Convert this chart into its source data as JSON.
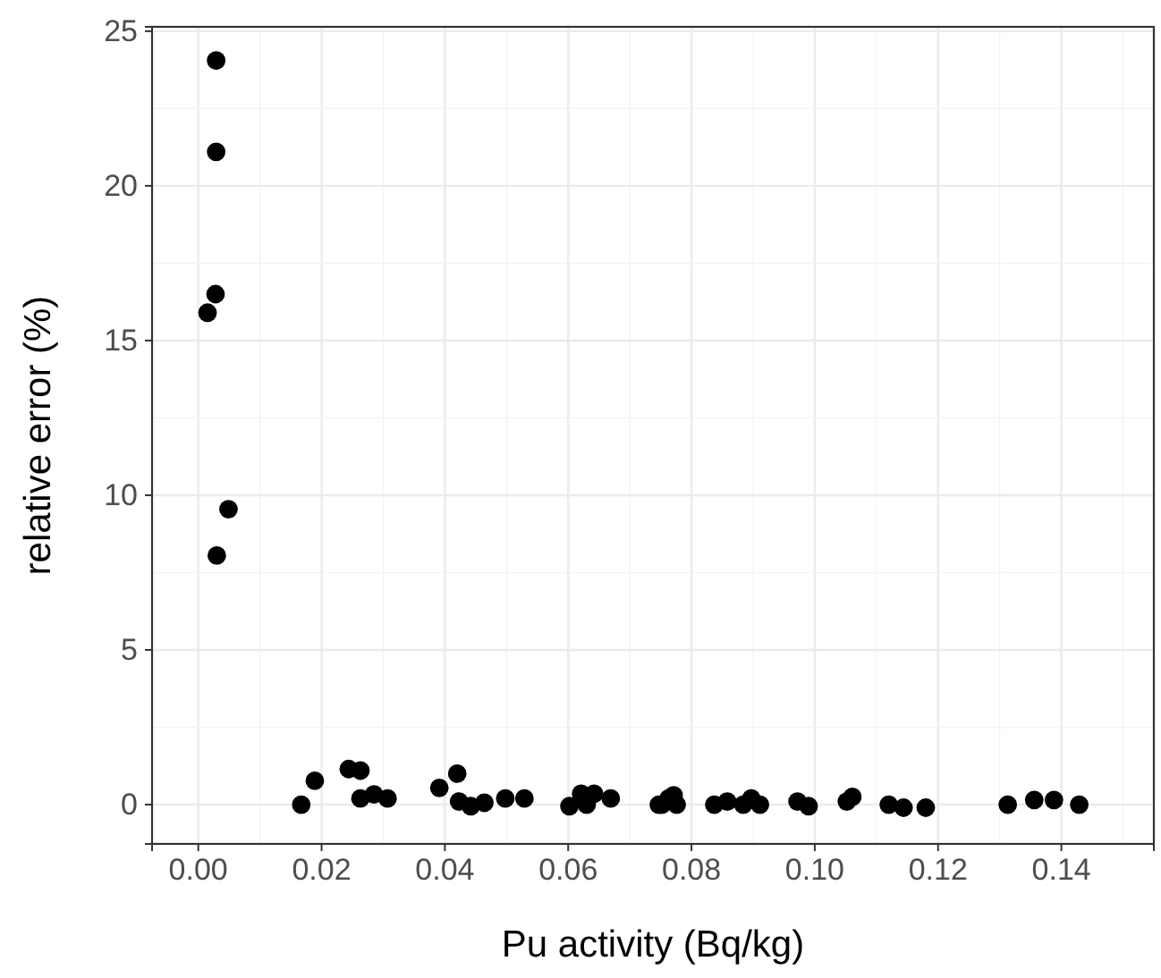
{
  "chart_data": {
    "type": "scatter",
    "xlabel": "Pu activity (Bq/kg)",
    "ylabel": "relative error (%)",
    "x": [
      0.0029,
      0.0029,
      0.0028,
      0.0015,
      0.0049,
      0.003,
      0.0167,
      0.0189,
      0.0244,
      0.0263,
      0.0263,
      0.0285,
      0.0307,
      0.0391,
      0.042,
      0.0423,
      0.0442,
      0.0464,
      0.0498,
      0.0529,
      0.0602,
      0.0621,
      0.0642,
      0.063,
      0.0669,
      0.0747,
      0.0752,
      0.0771,
      0.0776,
      0.0763,
      0.0837,
      0.0858,
      0.0897,
      0.0911,
      0.0884,
      0.0972,
      0.099,
      0.1052,
      0.1061,
      0.112,
      0.1144,
      0.118,
      0.1313,
      0.1356,
      0.1388,
      0.1429
    ],
    "values": [
      24.05,
      21.1,
      16.5,
      15.9,
      9.55,
      8.05,
      0.0,
      0.77,
      1.15,
      1.1,
      0.2,
      0.33,
      0.2,
      0.54,
      1.0,
      0.1,
      -0.05,
      0.06,
      0.2,
      0.2,
      -0.05,
      0.35,
      0.35,
      0.0,
      0.2,
      0.0,
      0.0,
      0.3,
      0.0,
      0.2,
      0.0,
      0.1,
      0.2,
      0.0,
      0.0,
      0.1,
      -0.05,
      0.1,
      0.25,
      0.0,
      -0.1,
      -0.1,
      0.0,
      0.15,
      0.15,
      0.0
    ],
    "color": "#000000",
    "marker": "circle",
    "grid": true,
    "xlim": [
      -0.0075,
      0.155
    ],
    "ylim": [
      -1.27,
      25.14
    ],
    "xticks": [
      {
        "value": 0,
        "label": "0.00"
      },
      {
        "value": 0.02,
        "label": "0.02"
      },
      {
        "value": 0.04,
        "label": "0.04"
      },
      {
        "value": 0.06,
        "label": "0.06"
      },
      {
        "value": 0.08,
        "label": "0.08"
      },
      {
        "value": 0.1,
        "label": "0.10"
      },
      {
        "value": 0.12,
        "label": "0.12"
      },
      {
        "value": 0.14,
        "label": "0.14"
      }
    ],
    "yticks": [
      0,
      5,
      10,
      15,
      20,
      25
    ]
  }
}
